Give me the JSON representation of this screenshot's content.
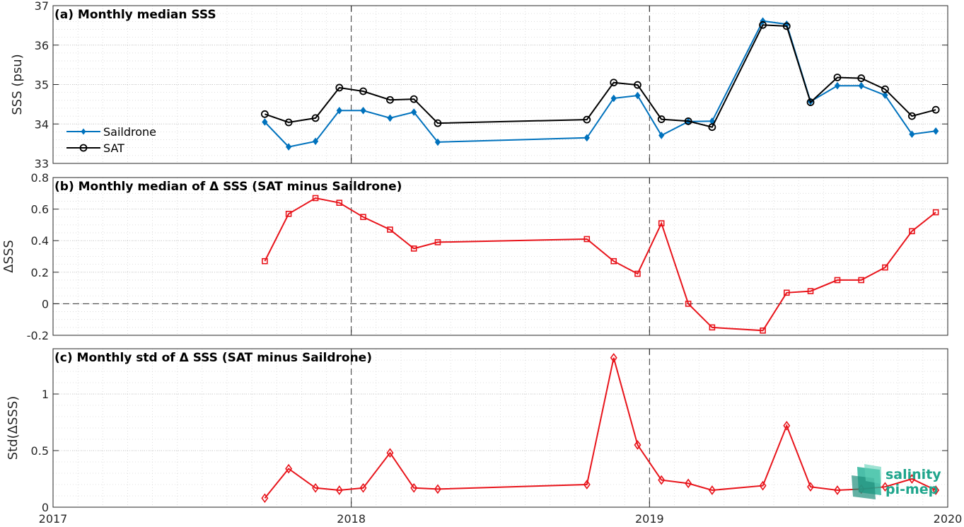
{
  "colors": {
    "saildrone": "#0072BD",
    "sat": "#000000",
    "delta": "#E8141B",
    "logo": "#1fa58c"
  },
  "logo": {
    "icon": "salinity-pi-mep-logo-icon",
    "line1": "salinity",
    "line2": "pi-mep"
  },
  "chart_data": [
    {
      "type": "line",
      "title": "(a) Monthly median SSS",
      "ylabel": "SSS (psu)",
      "ylim": [
        33,
        37
      ],
      "yticks": [
        33,
        34,
        35,
        36,
        37
      ],
      "ytick_labels": [
        "33",
        "34",
        "35",
        "36",
        "37"
      ],
      "xlim": [
        2017,
        2020
      ],
      "legend": {
        "placement": "left-bottom",
        "entries": [
          "Saildrone",
          "SAT"
        ]
      },
      "series": [
        {
          "name": "Saildrone",
          "marker": "diamond-filled",
          "x": [
            2017.71,
            2017.79,
            2017.88,
            2017.96,
            2018.04,
            2018.13,
            2018.21,
            2018.29,
            2018.79,
            2018.88,
            2018.96,
            2019.04,
            2019.13,
            2019.21,
            2019.38,
            2019.46,
            2019.54,
            2019.63,
            2019.71,
            2019.79,
            2019.88,
            2019.96
          ],
          "y": [
            34.05,
            33.42,
            33.56,
            34.34,
            34.34,
            34.15,
            34.3,
            33.54,
            33.65,
            34.65,
            34.72,
            33.71,
            34.06,
            34.07,
            36.61,
            36.53,
            34.57,
            34.97,
            34.97,
            34.73,
            33.74,
            33.82
          ]
        },
        {
          "name": "SAT",
          "marker": "circle-open",
          "x": [
            2017.71,
            2017.79,
            2017.88,
            2017.96,
            2018.04,
            2018.13,
            2018.21,
            2018.29,
            2018.79,
            2018.88,
            2018.96,
            2019.04,
            2019.13,
            2019.21,
            2019.38,
            2019.46,
            2019.54,
            2019.63,
            2019.71,
            2019.79,
            2019.88,
            2019.96
          ],
          "y": [
            34.25,
            34.04,
            34.15,
            34.92,
            34.83,
            34.61,
            34.63,
            34.02,
            34.11,
            35.05,
            34.99,
            34.12,
            34.07,
            33.92,
            36.51,
            36.48,
            34.55,
            35.18,
            35.16,
            34.88,
            34.2,
            34.36
          ]
        }
      ]
    },
    {
      "type": "line",
      "title": "(b) Monthly median of Δ SSS (SAT minus Saildrone)",
      "ylabel": "ΔSSS",
      "ylim": [
        -0.2,
        0.8
      ],
      "yticks": [
        -0.2,
        0,
        0.2,
        0.4,
        0.6,
        0.8
      ],
      "ytick_labels": [
        "-0.2",
        "0",
        "0.2",
        "0.4",
        "0.6",
        "0.8"
      ],
      "xlim": [
        2017,
        2020
      ],
      "zero_line": true,
      "series": [
        {
          "marker": "square-open",
          "x": [
            2017.71,
            2017.79,
            2017.88,
            2017.96,
            2018.04,
            2018.13,
            2018.21,
            2018.29,
            2018.79,
            2018.88,
            2018.96,
            2019.04,
            2019.13,
            2019.21,
            2019.38,
            2019.46,
            2019.54,
            2019.63,
            2019.71,
            2019.79,
            2019.88,
            2019.96
          ],
          "y": [
            0.27,
            0.57,
            0.67,
            0.64,
            0.55,
            0.47,
            0.35,
            0.39,
            0.41,
            0.27,
            0.19,
            0.51,
            0.0,
            -0.15,
            -0.17,
            0.07,
            0.08,
            0.15,
            0.15,
            0.23,
            0.46,
            0.58
          ]
        }
      ]
    },
    {
      "type": "line",
      "title": "(c) Monthly std of Δ SSS (SAT minus Saildrone)",
      "ylabel": "Std(ΔSSS)",
      "ylim": [
        0,
        1.4
      ],
      "yticks": [
        0,
        0.5,
        1
      ],
      "ytick_labels": [
        "0",
        "0.5",
        "1"
      ],
      "xlim": [
        2017,
        2020
      ],
      "xticks": [
        2017,
        2018,
        2019,
        2020
      ],
      "xtick_labels": [
        "2017",
        "2018",
        "2019",
        "2020"
      ],
      "series": [
        {
          "marker": "diamond-open",
          "x": [
            2017.71,
            2017.79,
            2017.88,
            2017.96,
            2018.04,
            2018.13,
            2018.21,
            2018.29,
            2018.79,
            2018.88,
            2018.96,
            2019.04,
            2019.13,
            2019.21,
            2019.38,
            2019.46,
            2019.54,
            2019.63,
            2019.71,
            2019.79,
            2019.88,
            2019.96
          ],
          "y": [
            0.08,
            0.34,
            0.17,
            0.15,
            0.17,
            0.48,
            0.17,
            0.16,
            0.2,
            1.32,
            0.55,
            0.24,
            0.21,
            0.15,
            0.19,
            0.72,
            0.18,
            0.15,
            0.16,
            0.18,
            0.25,
            0.15
          ]
        }
      ]
    }
  ]
}
